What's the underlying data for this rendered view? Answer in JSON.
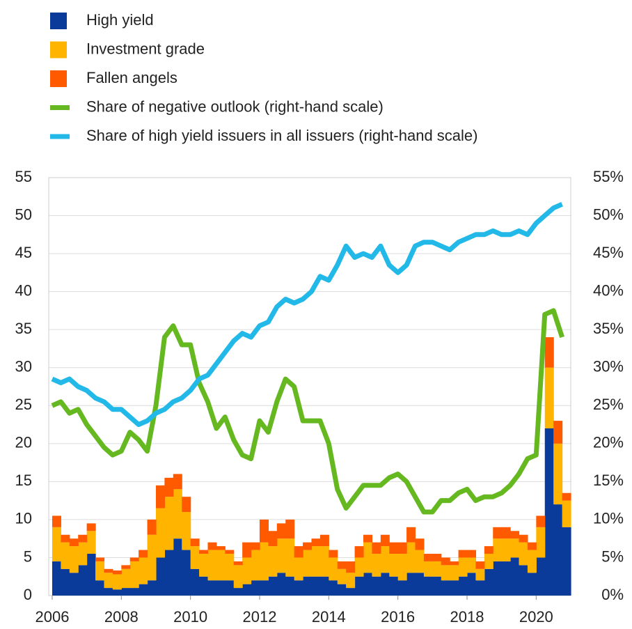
{
  "chart_data": {
    "type": "stacked_area_line",
    "x": [
      2006,
      2006.25,
      2006.5,
      2006.75,
      2007,
      2007.25,
      2007.5,
      2007.75,
      2008,
      2008.25,
      2008.5,
      2008.75,
      2009,
      2009.25,
      2009.5,
      2009.75,
      2010,
      2010.25,
      2010.5,
      2010.75,
      2011,
      2011.25,
      2011.5,
      2011.75,
      2012,
      2012.25,
      2012.5,
      2012.75,
      2013,
      2013.25,
      2013.5,
      2013.75,
      2014,
      2014.25,
      2014.5,
      2014.75,
      2015,
      2015.25,
      2015.5,
      2015.75,
      2016,
      2016.25,
      2016.5,
      2016.75,
      2017,
      2017.25,
      2017.5,
      2017.75,
      2018,
      2018.25,
      2018.5,
      2018.75,
      2019,
      2019.25,
      2019.5,
      2019.75,
      2020,
      2020.25,
      2020.5,
      2020.75
    ],
    "series": [
      {
        "name": "High yield",
        "color": "#0a3a9a",
        "values": [
          4.5,
          3.5,
          3,
          4,
          5.5,
          2,
          1,
          0.8,
          1,
          1,
          1.5,
          2,
          5,
          6,
          7.5,
          6,
          3.5,
          2.5,
          2,
          2,
          2,
          1,
          1.5,
          2,
          2,
          2.5,
          3,
          2.5,
          2,
          2.5,
          2.5,
          2.5,
          2,
          1.5,
          1,
          2.5,
          3,
          2.5,
          3,
          2.5,
          2,
          3,
          3,
          2.5,
          2.5,
          2,
          2,
          2.5,
          3,
          2,
          3.5,
          4.5,
          4.5,
          5,
          4,
          3,
          5,
          22,
          12,
          9
        ]
      },
      {
        "name": "Investment grade",
        "color": "#ffb400",
        "values": [
          4.5,
          3.5,
          3.5,
          3,
          3,
          2.5,
          2,
          2,
          2.5,
          3.5,
          3.5,
          6,
          6.5,
          7,
          6.5,
          5,
          3,
          3,
          4,
          4,
          3.5,
          3,
          3.5,
          4,
          5,
          4,
          4.5,
          5,
          3,
          3.5,
          4,
          4,
          3,
          2,
          2,
          2.5,
          4,
          3,
          3.5,
          3,
          3.5,
          4,
          3,
          2,
          2,
          2,
          2,
          2.5,
          2,
          1.5,
          2,
          3,
          3,
          2.5,
          3,
          3,
          4,
          8,
          8,
          3.5
        ]
      },
      {
        "name": "Fallen angels",
        "color": "#ff5a00",
        "values": [
          1.5,
          1,
          1,
          1,
          1,
          0.5,
          0.5,
          0.5,
          0.5,
          0.5,
          1,
          2,
          3,
          2.5,
          2,
          2,
          1,
          0.5,
          1,
          0.5,
          0.5,
          0.5,
          2,
          1,
          3,
          2,
          2,
          2.5,
          1.5,
          1,
          1,
          1.5,
          1,
          1,
          1.5,
          1.5,
          1,
          1.5,
          1.5,
          1.5,
          1.5,
          2,
          1.5,
          1,
          1,
          1,
          0.5,
          1,
          1,
          1,
          1,
          1.5,
          1.5,
          1,
          1,
          1,
          1.5,
          4,
          3,
          1
        ]
      },
      {
        "name": "Share of negative outlook (right-hand scale)",
        "color": "#66b821",
        "axis": "y2",
        "values": [
          25,
          25.5,
          24,
          24.5,
          22.5,
          21,
          19.5,
          18.5,
          19,
          21.5,
          20.5,
          19,
          25,
          34,
          35.5,
          33,
          33,
          28,
          25.5,
          22,
          23.5,
          20.5,
          18.5,
          18,
          23,
          21.5,
          25.5,
          28.5,
          27.5,
          23,
          23,
          23,
          20,
          14,
          11.5,
          13,
          14.5,
          14.5,
          14.5,
          15.5,
          16,
          15,
          13,
          11,
          11,
          12.5,
          12.5,
          13.5,
          14,
          12.5,
          13,
          13,
          13.5,
          14.5,
          16,
          18,
          18.5,
          37,
          37.5,
          34
        ]
      },
      {
        "name": "Share of high yield issuers in all issuers (right-hand scale)",
        "color": "#22b8e8",
        "axis": "y2",
        "values": [
          28.5,
          28,
          28.5,
          27.5,
          27,
          26,
          25.5,
          24.5,
          24.5,
          23.5,
          22.5,
          23,
          24,
          24.5,
          25.5,
          26,
          27,
          28.5,
          29,
          30.5,
          32,
          33.5,
          34.5,
          34,
          35.5,
          36,
          38,
          39,
          38.5,
          39,
          40,
          42,
          41.5,
          43.5,
          46,
          44.5,
          45,
          44.5,
          46,
          43.5,
          42.5,
          43.5,
          46,
          46.5,
          46.5,
          46,
          45.5,
          46.5,
          47,
          47.5,
          47.5,
          48,
          47.5,
          47.5,
          48,
          47.5,
          49,
          50,
          51,
          51.5
        ]
      }
    ],
    "xlim": [
      2005.9,
      2021
    ],
    "xticks": [
      2006,
      2008,
      2010,
      2012,
      2014,
      2016,
      2018,
      2020
    ],
    "ylim": [
      0,
      55
    ],
    "yticks": [
      0,
      5,
      10,
      15,
      20,
      25,
      30,
      35,
      40,
      45,
      50,
      55
    ],
    "y2lim": [
      0,
      55
    ],
    "y2ticks": [
      {
        "value": 0,
        "label": "0%"
      },
      {
        "value": 5,
        "label": "5%"
      },
      {
        "value": 10,
        "label": "10%"
      },
      {
        "value": 15,
        "label": "15%"
      },
      {
        "value": 20,
        "label": "20%"
      },
      {
        "value": 25,
        "label": "25%"
      },
      {
        "value": 30,
        "label": "30%"
      },
      {
        "value": 35,
        "label": "35%"
      },
      {
        "value": 40,
        "label": "40%"
      },
      {
        "value": 45,
        "label": "45%"
      },
      {
        "value": 50,
        "label": "50%"
      },
      {
        "value": 55,
        "label": "55%"
      }
    ],
    "grid": true
  }
}
